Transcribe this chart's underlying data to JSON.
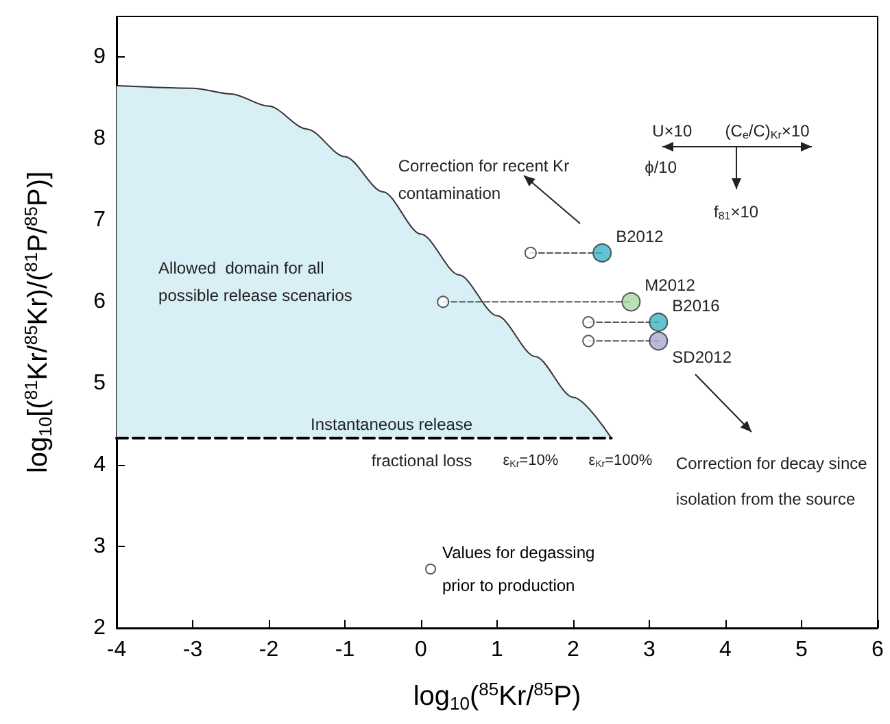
{
  "chart_data": {
    "type": "scatter",
    "xlabel": "log$_{10}$($^{85}$Kr/$^{85}$P)",
    "ylabel": "log$_{10}$[($^{81}$Kr/$^{85}$Kr)/($^{81}$P/$^{85}$P)]",
    "xlim": [
      -4,
      6
    ],
    "ylim": [
      2,
      9.5
    ],
    "xticks": [
      -4,
      -3,
      -2,
      -1,
      0,
      1,
      2,
      3,
      4,
      5,
      6
    ],
    "yticks": [
      2,
      3,
      4,
      5,
      6,
      7,
      8,
      9
    ],
    "grid": false,
    "legend": "bottom",
    "series": [
      {
        "type": "area",
        "color": "#d7eff5",
        "x": [
          -4,
          -3,
          -2.5,
          -2,
          -1.5,
          -1,
          -0.5,
          0,
          0.5,
          1,
          1.5,
          2,
          2.5
        ],
        "values": [
          8.65,
          8.62,
          8.55,
          8.4,
          8.12,
          7.78,
          7.35,
          6.83,
          6.33,
          5.83,
          5.33,
          4.83,
          4.33
        ]
      },
      {
        "type": "line",
        "color": "#000000",
        "line_style": "dashed",
        "x": [
          -4,
          2.5
        ],
        "values": [
          4.33,
          4.33
        ]
      },
      {
        "type": "line",
        "color": "#555555",
        "line_style": "dashed",
        "x": [
          1.44,
          2.38
        ],
        "values": [
          6.6,
          6.6
        ]
      },
      {
        "type": "line",
        "color": "#555555",
        "line_style": "dashed",
        "x": [
          0.29,
          2.76
        ],
        "values": [
          6.0,
          6.0
        ]
      },
      {
        "type": "line",
        "color": "#555555",
        "line_style": "dashed",
        "x": [
          2.2,
          3.12
        ],
        "values": [
          5.75,
          5.75
        ]
      },
      {
        "type": "line",
        "color": "#555555",
        "line_style": "dashed",
        "x": [
          2.2,
          3.12
        ],
        "values": [
          5.52,
          5.52
        ]
      },
      {
        "type": "scatter",
        "name": "Values for degassing prior to production",
        "color": "#ffffff",
        "marker": "circle",
        "x": [
          1.44,
          0.29,
          2.2,
          2.2
        ],
        "values": [
          6.6,
          6.0,
          5.75,
          5.52
        ]
      },
      {
        "type": "scatter",
        "marker": "circle",
        "colors": [
          "#3bb4c6",
          "#a9d9a2",
          "#3bb4c6",
          "#aaa9cf"
        ],
        "x": [
          2.38,
          2.76,
          3.12,
          3.12
        ],
        "values": [
          6.6,
          6.0,
          5.75,
          5.52
        ]
      }
    ],
    "annotations": [
      {
        "text": "B2012",
        "x": 2.38,
        "y": 6.6
      },
      {
        "text": "M2012",
        "x": 2.76,
        "y": 6.0
      },
      {
        "text": "B2016",
        "x": 3.12,
        "y": 5.75
      },
      {
        "text": "SD2012",
        "x": 3.12,
        "y": 5.52
      },
      "Allowed  domain for all\npossible release scenarios",
      "Instantaneous release",
      "fractional loss",
      "ε$_{Kr}$=10%",
      "ε$_{Kr}$=100%",
      "Correction for recent Kr\ncontamination",
      "Correction for decay since\n\nisolation from the source",
      "U×10",
      "(C$_{e}$/C)$_{Kr}$×10",
      "ϕ/10",
      "f$_{81}$×10"
    ]
  }
}
